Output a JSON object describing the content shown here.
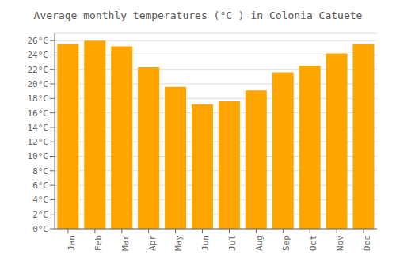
{
  "chart_data": {
    "type": "bar",
    "title": "Average monthly temperatures (°C ) in Colonia Catuete",
    "categories": [
      "Jan",
      "Feb",
      "Mar",
      "Apr",
      "May",
      "Jun",
      "Jul",
      "Aug",
      "Sep",
      "Oct",
      "Nov",
      "Dec"
    ],
    "values": [
      25.5,
      26.0,
      25.2,
      22.3,
      19.6,
      17.2,
      17.6,
      19.1,
      21.6,
      22.5,
      24.2,
      25.5
    ],
    "color": "#FFA500",
    "ylim": [
      0,
      27
    ],
    "yticks": [
      {
        "value": 0,
        "label": "0°C"
      },
      {
        "value": 2,
        "label": "2°C"
      },
      {
        "value": 4,
        "label": "4°C"
      },
      {
        "value": 6,
        "label": "6°C"
      },
      {
        "value": 8,
        "label": "8°C"
      },
      {
        "value": 10,
        "label": "10°C"
      },
      {
        "value": 12,
        "label": "12°C"
      },
      {
        "value": 14,
        "label": "14°C"
      },
      {
        "value": 16,
        "label": "16°C"
      },
      {
        "value": 18,
        "label": "18°C"
      },
      {
        "value": 20,
        "label": "20°C"
      },
      {
        "value": 22,
        "label": "22°C"
      },
      {
        "value": 24,
        "label": "24°C"
      },
      {
        "value": 26,
        "label": "26°C"
      }
    ],
    "grid": true
  }
}
